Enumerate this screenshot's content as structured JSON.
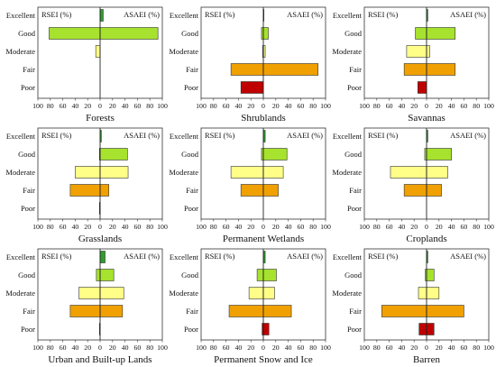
{
  "chart_data": [
    {
      "type": "bar",
      "title": "Forests",
      "left_label": "RSEI (%)",
      "right_label": "ASAEI (%)",
      "categories": [
        "Excellent",
        "Good",
        "Moderate",
        "Fair",
        "Poor"
      ],
      "category_colors": [
        "#2e9d2e",
        "#a6e22e",
        "#ffff88",
        "#f0a000",
        "#c00000"
      ],
      "series": [
        {
          "name": "RSEI (%)",
          "values": [
            0,
            82,
            7,
            0,
            0
          ]
        },
        {
          "name": "ASAEI (%)",
          "values": [
            5,
            93,
            0,
            0,
            0
          ]
        }
      ],
      "xlim": [
        -100,
        100
      ],
      "xticks": [
        100,
        80,
        60,
        40,
        20,
        0,
        20,
        40,
        60,
        80,
        100
      ]
    },
    {
      "type": "bar",
      "title": "Shrublands",
      "left_label": "RSEI (%)",
      "right_label": "ASAEI (%)",
      "categories": [
        "Excellent",
        "Good",
        "Moderate",
        "Fair",
        "Poor"
      ],
      "category_colors": [
        "#2e9d2e",
        "#a6e22e",
        "#ffff88",
        "#f0a000",
        "#c00000"
      ],
      "series": [
        {
          "name": "RSEI (%)",
          "values": [
            0,
            3,
            1,
            52,
            36
          ]
        },
        {
          "name": "ASAEI (%)",
          "values": [
            1,
            8,
            3,
            88,
            0
          ]
        }
      ],
      "xlim": [
        -100,
        100
      ],
      "xticks": [
        100,
        80,
        60,
        40,
        20,
        0,
        20,
        40,
        60,
        80,
        100
      ]
    },
    {
      "type": "bar",
      "title": "Savannas",
      "left_label": "RSEI (%)",
      "right_label": "ASAEI (%)",
      "categories": [
        "Excellent",
        "Good",
        "Moderate",
        "Fair",
        "Poor"
      ],
      "category_colors": [
        "#2e9d2e",
        "#a6e22e",
        "#ffff88",
        "#f0a000",
        "#c00000"
      ],
      "series": [
        {
          "name": "RSEI (%)",
          "values": [
            0,
            18,
            32,
            36,
            14
          ]
        },
        {
          "name": "ASAEI (%)",
          "values": [
            2,
            46,
            5,
            46,
            0
          ]
        }
      ],
      "xlim": [
        -100,
        100
      ],
      "xticks": [
        100,
        80,
        60,
        40,
        20,
        0,
        20,
        40,
        60,
        80,
        100
      ]
    },
    {
      "type": "bar",
      "title": "Grasslands",
      "left_label": "RSEI (%)",
      "right_label": "ASAEI (%)",
      "categories": [
        "Excellent",
        "Good",
        "Moderate",
        "Fair",
        "Poor"
      ],
      "category_colors": [
        "#2e9d2e",
        "#a6e22e",
        "#ffff88",
        "#f0a000",
        "#c00000"
      ],
      "series": [
        {
          "name": "RSEI (%)",
          "values": [
            0,
            1,
            40,
            48,
            1
          ]
        },
        {
          "name": "ASAEI (%)",
          "values": [
            2,
            44,
            45,
            14,
            0
          ]
        }
      ],
      "xlim": [
        -100,
        100
      ],
      "xticks": [
        100,
        80,
        60,
        40,
        20,
        0,
        20,
        40,
        60,
        80,
        100
      ]
    },
    {
      "type": "bar",
      "title": "Permanent Wetlands",
      "left_label": "RSEI (%)",
      "right_label": "ASAEI (%)",
      "categories": [
        "Excellent",
        "Good",
        "Moderate",
        "Fair",
        "Poor"
      ],
      "category_colors": [
        "#2e9d2e",
        "#a6e22e",
        "#ffff88",
        "#f0a000",
        "#c00000"
      ],
      "series": [
        {
          "name": "RSEI (%)",
          "values": [
            0,
            3,
            52,
            36,
            0
          ]
        },
        {
          "name": "ASAEI (%)",
          "values": [
            3,
            38,
            32,
            24,
            0
          ]
        }
      ],
      "xlim": [
        -100,
        100
      ],
      "xticks": [
        100,
        80,
        60,
        40,
        20,
        0,
        20,
        40,
        60,
        80,
        100
      ]
    },
    {
      "type": "bar",
      "title": "Croplands",
      "left_label": "RSEI (%)",
      "right_label": "ASAEI (%)",
      "categories": [
        "Excellent",
        "Good",
        "Moderate",
        "Fair",
        "Poor"
      ],
      "category_colors": [
        "#2e9d2e",
        "#a6e22e",
        "#ffff88",
        "#f0a000",
        "#c00000"
      ],
      "series": [
        {
          "name": "RSEI (%)",
          "values": [
            0,
            3,
            58,
            36,
            0
          ]
        },
        {
          "name": "ASAEI (%)",
          "values": [
            2,
            40,
            34,
            24,
            0
          ]
        }
      ],
      "xlim": [
        -100,
        100
      ],
      "xticks": [
        100,
        80,
        60,
        40,
        20,
        0,
        20,
        40,
        60,
        80,
        100
      ]
    },
    {
      "type": "bar",
      "title": "Urban and Built-up Lands",
      "left_label": "RSEI (%)",
      "right_label": "ASAEI (%)",
      "categories": [
        "Excellent",
        "Good",
        "Moderate",
        "Fair",
        "Poor"
      ],
      "category_colors": [
        "#2e9d2e",
        "#a6e22e",
        "#ffff88",
        "#f0a000",
        "#c00000"
      ],
      "series": [
        {
          "name": "RSEI (%)",
          "values": [
            0,
            6,
            34,
            48,
            1
          ]
        },
        {
          "name": "ASAEI (%)",
          "values": [
            8,
            22,
            38,
            36,
            0
          ]
        }
      ],
      "xlim": [
        -100,
        100
      ],
      "xticks": [
        100,
        80,
        60,
        40,
        20,
        0,
        20,
        40,
        60,
        80,
        100
      ]
    },
    {
      "type": "bar",
      "title": "Permanent Snow and Ice",
      "left_label": "RSEI (%)",
      "right_label": "ASAEI (%)",
      "categories": [
        "Excellent",
        "Good",
        "Moderate",
        "Fair",
        "Poor"
      ],
      "category_colors": [
        "#2e9d2e",
        "#a6e22e",
        "#ffff88",
        "#f0a000",
        "#c00000"
      ],
      "series": [
        {
          "name": "RSEI (%)",
          "values": [
            0,
            10,
            23,
            55,
            2
          ]
        },
        {
          "name": "ASAEI (%)",
          "values": [
            3,
            21,
            18,
            45,
            9
          ]
        }
      ],
      "xlim": [
        -100,
        100
      ],
      "xticks": [
        100,
        80,
        60,
        40,
        20,
        0,
        20,
        40,
        60,
        80,
        100
      ]
    },
    {
      "type": "bar",
      "title": "Barren",
      "left_label": "RSEI (%)",
      "right_label": "ASAEI (%)",
      "categories": [
        "Excellent",
        "Good",
        "Moderate",
        "Fair",
        "Poor"
      ],
      "category_colors": [
        "#2e9d2e",
        "#a6e22e",
        "#ffff88",
        "#f0a000",
        "#c00000"
      ],
      "series": [
        {
          "name": "RSEI (%)",
          "values": [
            0,
            2,
            13,
            72,
            12
          ]
        },
        {
          "name": "ASAEI (%)",
          "values": [
            2,
            12,
            20,
            60,
            12
          ]
        }
      ],
      "xlim": [
        -100,
        100
      ],
      "xticks": [
        100,
        80,
        60,
        40,
        20,
        0,
        20,
        40,
        60,
        80,
        100
      ]
    }
  ]
}
